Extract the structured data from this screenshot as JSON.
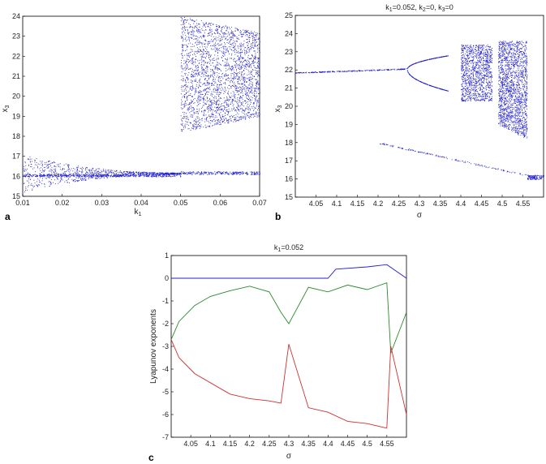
{
  "colors": {
    "blue": "#2020d0",
    "green": "#2a8a2a",
    "red": "#d03030",
    "axis": "#000000"
  },
  "chart_data": [
    {
      "panel": "a",
      "type": "scatter",
      "title": "",
      "xlabel": "k",
      "xlabel_sub": "1",
      "ylabel": "x",
      "ylabel_sub": "3",
      "xlim": [
        0.01,
        0.07
      ],
      "ylim": [
        15,
        24
      ],
      "xticks": [
        "0.01",
        "0.02",
        "0.03",
        "0.04",
        "0.05",
        "0.06",
        "0.07"
      ],
      "yticks": [
        "15",
        "16",
        "17",
        "18",
        "19",
        "20",
        "21",
        "22",
        "23",
        "24"
      ],
      "grid": false,
      "description_bands": [
        {
          "x": [
            0.01,
            0.05
          ],
          "y": [
            [
              16.0,
              17.05
            ],
            [
              16.0,
              16.2
            ]
          ]
        },
        {
          "x": [
            0.05,
            0.07
          ],
          "y": [
            [
              18.1,
              24.0
            ],
            [
              18.6,
              23.2
            ]
          ]
        }
      ]
    },
    {
      "panel": "b",
      "type": "scatter",
      "title_parts": [
        "k",
        "1",
        "=0.052, k",
        "2",
        "=0, k",
        "3",
        "=0"
      ],
      "xlabel": "σ",
      "ylabel": "x",
      "ylabel_sub": "3",
      "xlim": [
        4.0,
        4.6
      ],
      "ylim": [
        15,
        25
      ],
      "xticks": [
        "4.05",
        "4.1",
        "4.15",
        "4.2",
        "4.25",
        "4.3",
        "4.35",
        "4.4",
        "4.45",
        "4.5",
        "4.55"
      ],
      "yticks": [
        "15",
        "16",
        "17",
        "18",
        "19",
        "20",
        "21",
        "22",
        "23",
        "24",
        "25"
      ],
      "grid": false
    },
    {
      "panel": "c",
      "type": "line",
      "title_parts": [
        "k",
        "1",
        "=0.052"
      ],
      "xlabel": "σ",
      "ylabel": "Lyapunov exponents",
      "xlim": [
        4.0,
        4.6
      ],
      "ylim": [
        -7,
        1
      ],
      "xticks": [
        "4.05",
        "4.1",
        "4.15",
        "4.2",
        "4.25",
        "4.3",
        "4.35",
        "4.4",
        "4.45",
        "4.5",
        "4.55"
      ],
      "yticks": [
        "-7",
        "-6",
        "-5",
        "-4",
        "-3",
        "-2",
        "-1",
        "0",
        "1"
      ],
      "grid": false,
      "series": [
        {
          "color": "blue",
          "x": [
            4.0,
            4.1,
            4.2,
            4.3,
            4.4,
            4.42,
            4.5,
            4.55,
            4.6
          ],
          "y": [
            0,
            0,
            0,
            0,
            0,
            0.4,
            0.5,
            0.6,
            0
          ]
        },
        {
          "color": "green",
          "x": [
            4.0,
            4.02,
            4.06,
            4.1,
            4.15,
            4.2,
            4.25,
            4.28,
            4.3,
            4.35,
            4.4,
            4.45,
            4.5,
            4.55,
            4.56,
            4.6
          ],
          "y": [
            -2.7,
            -1.9,
            -1.2,
            -0.8,
            -0.55,
            -0.35,
            -0.6,
            -1.5,
            -2.0,
            -0.4,
            -0.6,
            -0.3,
            -0.5,
            -0.2,
            -3.3,
            -1.5
          ]
        },
        {
          "color": "red",
          "x": [
            4.0,
            4.02,
            4.06,
            4.1,
            4.15,
            4.2,
            4.25,
            4.28,
            4.3,
            4.35,
            4.4,
            4.45,
            4.5,
            4.55,
            4.56,
            4.6
          ],
          "y": [
            -2.7,
            -3.5,
            -4.2,
            -4.6,
            -5.1,
            -5.3,
            -5.4,
            -5.5,
            -2.9,
            -5.7,
            -5.9,
            -6.3,
            -6.4,
            -6.6,
            -3.0,
            -6.0
          ]
        }
      ]
    }
  ]
}
